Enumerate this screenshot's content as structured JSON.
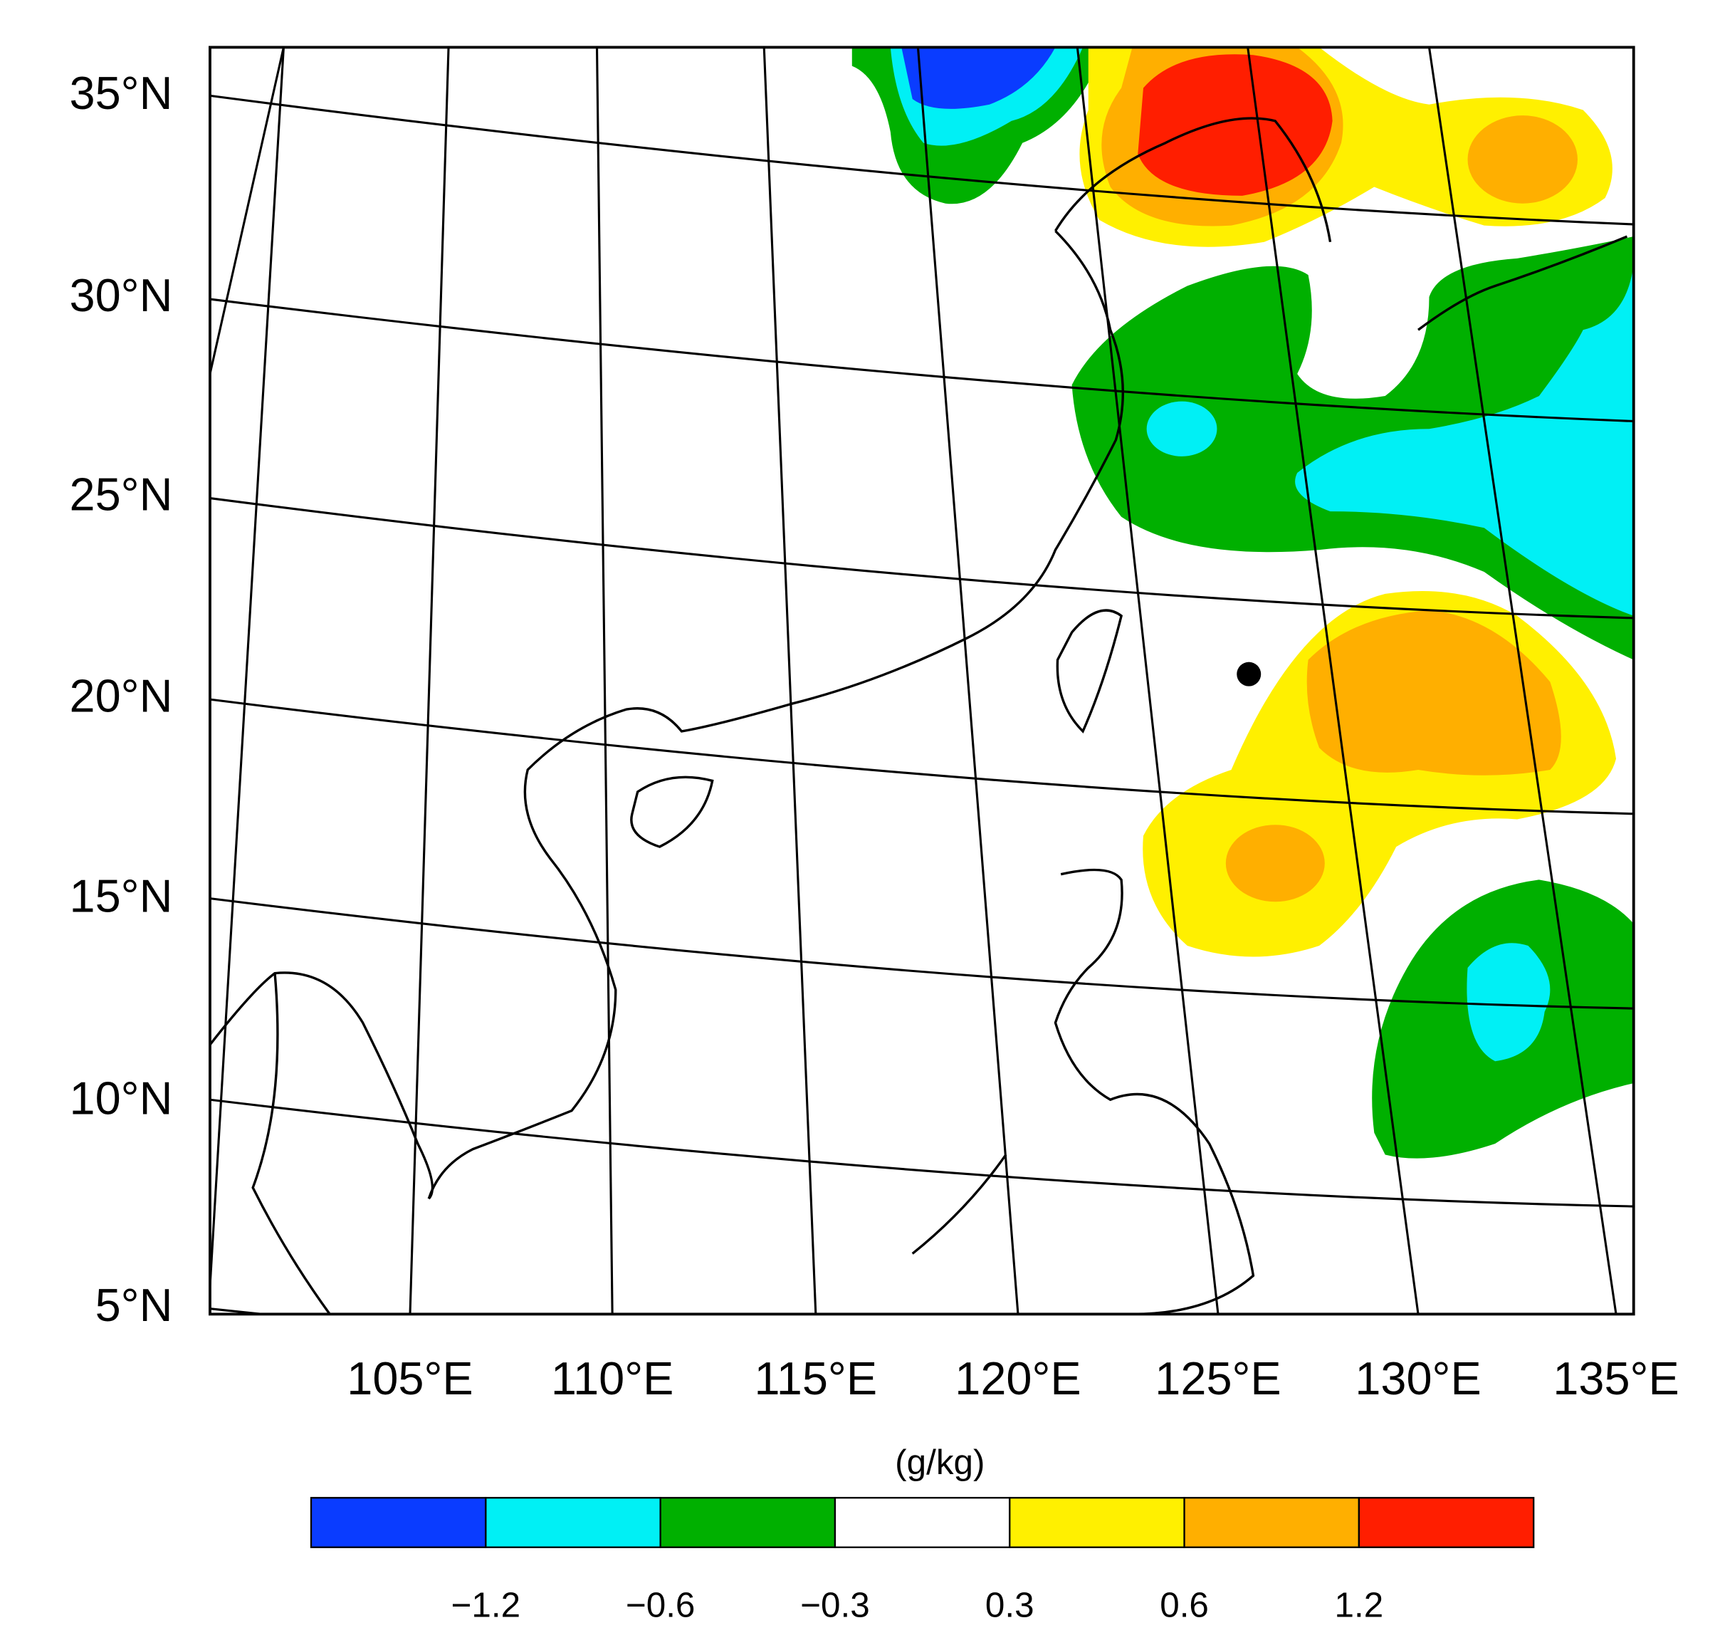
{
  "map": {
    "lat_labels": [
      "35°N",
      "30°N",
      "25°N",
      "20°N",
      "15°N",
      "10°N",
      "5°N"
    ],
    "lon_labels": [
      "105°E",
      "110°E",
      "115°E",
      "120°E",
      "125°E",
      "130°E",
      "135°E"
    ]
  },
  "colorbar": {
    "title": "(g/kg)",
    "colors": [
      "#0a3cff",
      "#00f0f5",
      "#00b000",
      "#ffffff",
      "#fff000",
      "#ffaf00",
      "#ff1e00"
    ],
    "labels": [
      "−1.2",
      "−0.6",
      "−0.3",
      "0.3",
      "0.6",
      "1.2"
    ]
  }
}
